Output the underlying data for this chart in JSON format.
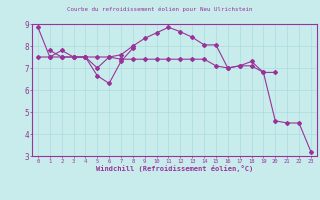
{
  "title": "Courbe du refroidissement éolien pour Neu Ulrichstein",
  "xlabel": "Windchill (Refroidissement éolien,°C)",
  "background_color": "#c8ecec",
  "line_color": "#993399",
  "grid_color": "#aadddd",
  "xlim": [
    -0.5,
    23.5
  ],
  "ylim": [
    3,
    9
  ],
  "xtick_vals": [
    0,
    1,
    2,
    3,
    4,
    5,
    6,
    7,
    8,
    9,
    10,
    11,
    12,
    13,
    14,
    15,
    16,
    17,
    18,
    19,
    20,
    21,
    22,
    23
  ],
  "xtick_labels": [
    "0",
    "1",
    "2",
    "3",
    "4",
    "5",
    "6",
    "7",
    "8",
    "9",
    "10",
    "11",
    "12",
    "13",
    "14",
    "15",
    "16",
    "17",
    "18",
    "19",
    "20",
    "21",
    "22",
    "23"
  ],
  "ytick_vals": [
    3,
    4,
    5,
    6,
    7,
    8,
    9
  ],
  "ytick_labels": [
    "3",
    "4",
    "5",
    "6",
    "7",
    "8",
    "9"
  ],
  "series": [
    [
      0,
      8.85
    ],
    [
      1,
      7.5
    ],
    [
      2,
      7.8
    ],
    [
      3,
      7.5
    ],
    [
      4,
      7.5
    ],
    [
      5,
      6.65
    ],
    [
      6,
      6.3
    ],
    [
      7,
      7.3
    ],
    [
      8,
      7.9
    ]
  ],
  "series2": [
    [
      0,
      7.5
    ],
    [
      1,
      7.5
    ],
    [
      2,
      7.5
    ],
    [
      3,
      7.5
    ],
    [
      4,
      7.5
    ],
    [
      5,
      7.5
    ],
    [
      6,
      7.5
    ],
    [
      7,
      7.4
    ],
    [
      8,
      7.4
    ],
    [
      9,
      7.4
    ],
    [
      10,
      7.4
    ],
    [
      11,
      7.4
    ],
    [
      12,
      7.4
    ],
    [
      13,
      7.4
    ],
    [
      14,
      7.4
    ],
    [
      15,
      7.1
    ],
    [
      16,
      7.0
    ],
    [
      17,
      7.1
    ],
    [
      18,
      7.1
    ],
    [
      19,
      6.8
    ],
    [
      20,
      4.6
    ],
    [
      21,
      4.5
    ],
    [
      22,
      4.5
    ],
    [
      23,
      3.2
    ]
  ],
  "series3": [
    [
      1,
      7.8
    ],
    [
      2,
      7.5
    ],
    [
      3,
      7.5
    ],
    [
      4,
      7.5
    ],
    [
      5,
      7.0
    ],
    [
      6,
      7.5
    ],
    [
      7,
      7.6
    ],
    [
      8,
      8.0
    ],
    [
      9,
      8.35
    ],
    [
      10,
      8.6
    ],
    [
      11,
      8.85
    ],
    [
      12,
      8.65
    ],
    [
      13,
      8.4
    ],
    [
      14,
      8.05
    ],
    [
      15,
      8.05
    ],
    [
      16,
      7.0
    ],
    [
      17,
      7.1
    ],
    [
      18,
      7.3
    ],
    [
      19,
      6.8
    ],
    [
      20,
      6.8
    ]
  ]
}
